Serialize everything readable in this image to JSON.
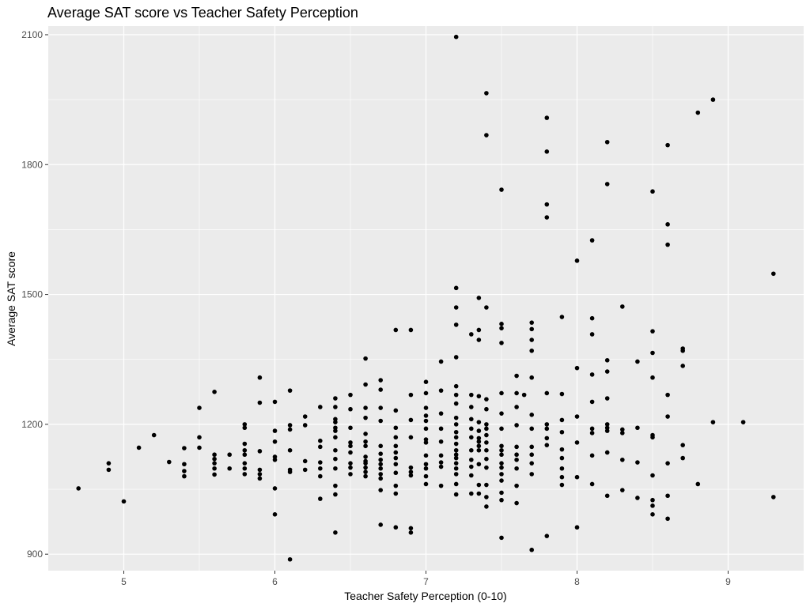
{
  "chart_data": {
    "type": "scatter",
    "title": "Average SAT score vs Teacher Safety Perception",
    "xlabel": "Teacher Safety Perception (0-10)",
    "ylabel": "Average SAT score",
    "xlim": [
      4.5,
      9.5
    ],
    "ylim": [
      862,
      2120
    ],
    "x_ticks": [
      5,
      6,
      7,
      8,
      9
    ],
    "y_ticks": [
      900,
      1200,
      1500,
      1800,
      2100
    ],
    "grid": true,
    "background": "#ebebeb",
    "grid_color": "#ffffff",
    "point_color": "#000000",
    "points": [
      [
        4.7,
        1052
      ],
      [
        4.9,
        1110
      ],
      [
        4.9,
        1095
      ],
      [
        5.0,
        1022
      ],
      [
        5.1,
        1146
      ],
      [
        5.2,
        1175
      ],
      [
        5.3,
        1113
      ],
      [
        5.4,
        1145
      ],
      [
        5.4,
        1108
      ],
      [
        5.4,
        1092
      ],
      [
        5.4,
        1080
      ],
      [
        5.5,
        1238
      ],
      [
        5.5,
        1170
      ],
      [
        5.5,
        1146
      ],
      [
        5.6,
        1275
      ],
      [
        5.6,
        1130
      ],
      [
        5.6,
        1120
      ],
      [
        5.6,
        1110
      ],
      [
        5.6,
        1098
      ],
      [
        5.6,
        1084
      ],
      [
        5.7,
        1130
      ],
      [
        5.7,
        1098
      ],
      [
        5.8,
        1200
      ],
      [
        5.8,
        1192
      ],
      [
        5.8,
        1155
      ],
      [
        5.8,
        1140
      ],
      [
        5.8,
        1130
      ],
      [
        5.8,
        1110
      ],
      [
        5.8,
        1098
      ],
      [
        5.8,
        1085
      ],
      [
        5.9,
        1308
      ],
      [
        5.9,
        1250
      ],
      [
        5.9,
        1138
      ],
      [
        5.9,
        1095
      ],
      [
        5.9,
        1085
      ],
      [
        5.9,
        1075
      ],
      [
        6.0,
        1252
      ],
      [
        6.0,
        1185
      ],
      [
        6.0,
        1160
      ],
      [
        6.0,
        1125
      ],
      [
        6.0,
        1118
      ],
      [
        6.0,
        1052
      ],
      [
        6.0,
        992
      ],
      [
        6.1,
        1278
      ],
      [
        6.1,
        1198
      ],
      [
        6.1,
        1188
      ],
      [
        6.1,
        1140
      ],
      [
        6.1,
        1095
      ],
      [
        6.1,
        1090
      ],
      [
        6.1,
        888
      ],
      [
        6.2,
        1218
      ],
      [
        6.2,
        1198
      ],
      [
        6.2,
        1115
      ],
      [
        6.2,
        1095
      ],
      [
        6.3,
        1240
      ],
      [
        6.3,
        1162
      ],
      [
        6.3,
        1148
      ],
      [
        6.3,
        1112
      ],
      [
        6.3,
        1098
      ],
      [
        6.3,
        1080
      ],
      [
        6.3,
        1028
      ],
      [
        6.4,
        1260
      ],
      [
        6.4,
        1240
      ],
      [
        6.4,
        1212
      ],
      [
        6.4,
        1205
      ],
      [
        6.4,
        1192
      ],
      [
        6.4,
        1185
      ],
      [
        6.4,
        1170
      ],
      [
        6.4,
        1140
      ],
      [
        6.4,
        1120
      ],
      [
        6.4,
        1098
      ],
      [
        6.4,
        1058
      ],
      [
        6.4,
        1038
      ],
      [
        6.4,
        950
      ],
      [
        6.5,
        1268
      ],
      [
        6.5,
        1235
      ],
      [
        6.5,
        1192
      ],
      [
        6.5,
        1158
      ],
      [
        6.5,
        1150
      ],
      [
        6.5,
        1135
      ],
      [
        6.5,
        1110
      ],
      [
        6.5,
        1100
      ],
      [
        6.5,
        1085
      ],
      [
        6.6,
        1352
      ],
      [
        6.6,
        1292
      ],
      [
        6.6,
        1238
      ],
      [
        6.6,
        1215
      ],
      [
        6.6,
        1178
      ],
      [
        6.6,
        1160
      ],
      [
        6.6,
        1150
      ],
      [
        6.6,
        1125
      ],
      [
        6.6,
        1115
      ],
      [
        6.6,
        1110
      ],
      [
        6.6,
        1100
      ],
      [
        6.6,
        1090
      ],
      [
        6.6,
        1080
      ],
      [
        6.7,
        1302
      ],
      [
        6.7,
        1280
      ],
      [
        6.7,
        1238
      ],
      [
        6.7,
        1208
      ],
      [
        6.7,
        1150
      ],
      [
        6.7,
        1132
      ],
      [
        6.7,
        1118
      ],
      [
        6.7,
        1108
      ],
      [
        6.7,
        1098
      ],
      [
        6.7,
        1085
      ],
      [
        6.7,
        1075
      ],
      [
        6.7,
        1048
      ],
      [
        6.7,
        968
      ],
      [
        6.8,
        1418
      ],
      [
        6.8,
        1232
      ],
      [
        6.8,
        1192
      ],
      [
        6.8,
        1170
      ],
      [
        6.8,
        1150
      ],
      [
        6.8,
        1135
      ],
      [
        6.8,
        1122
      ],
      [
        6.8,
        1108
      ],
      [
        6.8,
        1088
      ],
      [
        6.8,
        1058
      ],
      [
        6.8,
        1040
      ],
      [
        6.8,
        962
      ],
      [
        6.9,
        1418
      ],
      [
        6.9,
        1268
      ],
      [
        6.9,
        1210
      ],
      [
        6.9,
        1170
      ],
      [
        6.9,
        1100
      ],
      [
        6.9,
        1090
      ],
      [
        6.9,
        1082
      ],
      [
        6.9,
        960
      ],
      [
        6.9,
        950
      ],
      [
        7.0,
        1298
      ],
      [
        7.0,
        1272
      ],
      [
        7.0,
        1238
      ],
      [
        7.0,
        1220
      ],
      [
        7.0,
        1208
      ],
      [
        7.0,
        1190
      ],
      [
        7.0,
        1165
      ],
      [
        7.0,
        1158
      ],
      [
        7.0,
        1128
      ],
      [
        7.0,
        1108
      ],
      [
        7.0,
        1098
      ],
      [
        7.0,
        1080
      ],
      [
        7.0,
        1062
      ],
      [
        7.1,
        1345
      ],
      [
        7.1,
        1278
      ],
      [
        7.1,
        1225
      ],
      [
        7.1,
        1190
      ],
      [
        7.1,
        1160
      ],
      [
        7.1,
        1128
      ],
      [
        7.1,
        1112
      ],
      [
        7.1,
        1102
      ],
      [
        7.1,
        1058
      ],
      [
        7.2,
        2095
      ],
      [
        7.2,
        1515
      ],
      [
        7.2,
        1470
      ],
      [
        7.2,
        1430
      ],
      [
        7.2,
        1355
      ],
      [
        7.2,
        1288
      ],
      [
        7.2,
        1268
      ],
      [
        7.2,
        1248
      ],
      [
        7.2,
        1215
      ],
      [
        7.2,
        1200
      ],
      [
        7.2,
        1182
      ],
      [
        7.2,
        1170
      ],
      [
        7.2,
        1155
      ],
      [
        7.2,
        1140
      ],
      [
        7.2,
        1130
      ],
      [
        7.2,
        1122
      ],
      [
        7.2,
        1110
      ],
      [
        7.2,
        1098
      ],
      [
        7.2,
        1085
      ],
      [
        7.2,
        1062
      ],
      [
        7.2,
        1038
      ],
      [
        7.3,
        1408
      ],
      [
        7.3,
        1268
      ],
      [
        7.3,
        1240
      ],
      [
        7.3,
        1212
      ],
      [
        7.3,
        1190
      ],
      [
        7.3,
        1170
      ],
      [
        7.3,
        1140
      ],
      [
        7.3,
        1118
      ],
      [
        7.3,
        1102
      ],
      [
        7.3,
        1082
      ],
      [
        7.3,
        1040
      ],
      [
        7.35,
        1492
      ],
      [
        7.35,
        1418
      ],
      [
        7.35,
        1395
      ],
      [
        7.35,
        1265
      ],
      [
        7.35,
        1205
      ],
      [
        7.35,
        1185
      ],
      [
        7.35,
        1168
      ],
      [
        7.35,
        1160
      ],
      [
        7.35,
        1150
      ],
      [
        7.35,
        1140
      ],
      [
        7.35,
        1108
      ],
      [
        7.35,
        1060
      ],
      [
        7.35,
        1040
      ],
      [
        7.4,
        1965
      ],
      [
        7.4,
        1868
      ],
      [
        7.4,
        1470
      ],
      [
        7.4,
        1258
      ],
      [
        7.4,
        1235
      ],
      [
        7.4,
        1200
      ],
      [
        7.4,
        1190
      ],
      [
        7.4,
        1175
      ],
      [
        7.4,
        1158
      ],
      [
        7.4,
        1140
      ],
      [
        7.4,
        1120
      ],
      [
        7.4,
        1100
      ],
      [
        7.4,
        1060
      ],
      [
        7.4,
        1032
      ],
      [
        7.4,
        1010
      ],
      [
        7.5,
        1742
      ],
      [
        7.5,
        1432
      ],
      [
        7.5,
        1422
      ],
      [
        7.5,
        1388
      ],
      [
        7.5,
        1272
      ],
      [
        7.5,
        1225
      ],
      [
        7.5,
        1190
      ],
      [
        7.5,
        1150
      ],
      [
        7.5,
        1140
      ],
      [
        7.5,
        1130
      ],
      [
        7.5,
        1110
      ],
      [
        7.5,
        1100
      ],
      [
        7.5,
        1085
      ],
      [
        7.5,
        1070
      ],
      [
        7.5,
        1042
      ],
      [
        7.5,
        1025
      ],
      [
        7.5,
        938
      ],
      [
        7.6,
        1312
      ],
      [
        7.6,
        1272
      ],
      [
        7.6,
        1240
      ],
      [
        7.6,
        1198
      ],
      [
        7.6,
        1148
      ],
      [
        7.6,
        1130
      ],
      [
        7.6,
        1118
      ],
      [
        7.6,
        1098
      ],
      [
        7.6,
        1058
      ],
      [
        7.6,
        1018
      ],
      [
        7.65,
        1268
      ],
      [
        7.7,
        1435
      ],
      [
        7.7,
        1420
      ],
      [
        7.7,
        1395
      ],
      [
        7.7,
        1370
      ],
      [
        7.7,
        1308
      ],
      [
        7.7,
        1222
      ],
      [
        7.7,
        1190
      ],
      [
        7.7,
        1148
      ],
      [
        7.7,
        1130
      ],
      [
        7.7,
        1110
      ],
      [
        7.7,
        1085
      ],
      [
        7.7,
        910
      ],
      [
        7.8,
        1908
      ],
      [
        7.8,
        1830
      ],
      [
        7.8,
        1708
      ],
      [
        7.8,
        1678
      ],
      [
        7.8,
        1272
      ],
      [
        7.8,
        1200
      ],
      [
        7.8,
        1190
      ],
      [
        7.8,
        1168
      ],
      [
        7.8,
        1152
      ],
      [
        7.8,
        942
      ],
      [
        7.9,
        1448
      ],
      [
        7.9,
        1270
      ],
      [
        7.9,
        1210
      ],
      [
        7.9,
        1182
      ],
      [
        7.9,
        1142
      ],
      [
        7.9,
        1122
      ],
      [
        7.9,
        1098
      ],
      [
        7.9,
        1078
      ],
      [
        7.9,
        1060
      ],
      [
        8.0,
        1578
      ],
      [
        8.0,
        1330
      ],
      [
        8.0,
        1218
      ],
      [
        8.0,
        1158
      ],
      [
        8.0,
        1078
      ],
      [
        8.0,
        962
      ],
      [
        8.1,
        1625
      ],
      [
        8.1,
        1445
      ],
      [
        8.1,
        1408
      ],
      [
        8.1,
        1315
      ],
      [
        8.1,
        1252
      ],
      [
        8.1,
        1190
      ],
      [
        8.1,
        1180
      ],
      [
        8.1,
        1128
      ],
      [
        8.1,
        1062
      ],
      [
        8.2,
        1852
      ],
      [
        8.2,
        1755
      ],
      [
        8.2,
        1348
      ],
      [
        8.2,
        1322
      ],
      [
        8.2,
        1260
      ],
      [
        8.2,
        1200
      ],
      [
        8.2,
        1192
      ],
      [
        8.2,
        1185
      ],
      [
        8.2,
        1135
      ],
      [
        8.2,
        1035
      ],
      [
        8.3,
        1472
      ],
      [
        8.3,
        1188
      ],
      [
        8.3,
        1180
      ],
      [
        8.3,
        1118
      ],
      [
        8.3,
        1048
      ],
      [
        8.4,
        1345
      ],
      [
        8.4,
        1192
      ],
      [
        8.4,
        1112
      ],
      [
        8.4,
        1030
      ],
      [
        8.5,
        1738
      ],
      [
        8.5,
        1415
      ],
      [
        8.5,
        1365
      ],
      [
        8.5,
        1308
      ],
      [
        8.5,
        1175
      ],
      [
        8.5,
        1170
      ],
      [
        8.5,
        1082
      ],
      [
        8.5,
        1025
      ],
      [
        8.5,
        1012
      ],
      [
        8.5,
        992
      ],
      [
        8.6,
        1845
      ],
      [
        8.6,
        1662
      ],
      [
        8.6,
        1615
      ],
      [
        8.6,
        1268
      ],
      [
        8.6,
        1218
      ],
      [
        8.6,
        1110
      ],
      [
        8.6,
        1035
      ],
      [
        8.6,
        982
      ],
      [
        8.7,
        1375
      ],
      [
        8.7,
        1370
      ],
      [
        8.7,
        1335
      ],
      [
        8.7,
        1152
      ],
      [
        8.7,
        1122
      ],
      [
        8.8,
        1920
      ],
      [
        8.8,
        1062
      ],
      [
        8.9,
        1950
      ],
      [
        8.9,
        1205
      ],
      [
        9.1,
        1205
      ],
      [
        9.3,
        1548
      ],
      [
        9.3,
        1032
      ]
    ]
  }
}
